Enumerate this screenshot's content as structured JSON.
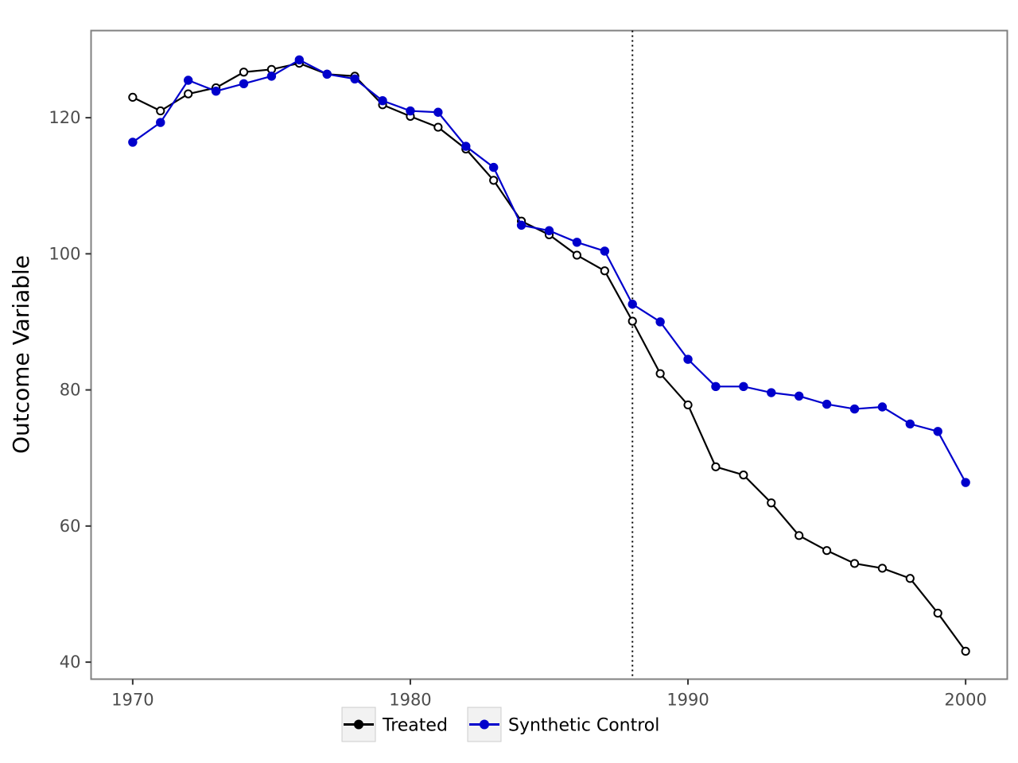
{
  "chart_data": {
    "type": "line",
    "title": "",
    "xlabel": "",
    "ylabel": "Outcome Variable",
    "xlim": [
      1968.5,
      2001.5
    ],
    "ylim": [
      37.5,
      132.8
    ],
    "x_ticks": [
      1970,
      1980,
      1990,
      2000
    ],
    "y_ticks": [
      40,
      60,
      80,
      100,
      120
    ],
    "grid": false,
    "legend_position": "bottom",
    "treatment_year": 1988,
    "x": [
      1970,
      1971,
      1972,
      1973,
      1974,
      1975,
      1976,
      1977,
      1978,
      1979,
      1980,
      1981,
      1982,
      1983,
      1984,
      1985,
      1986,
      1987,
      1988,
      1989,
      1990,
      1991,
      1992,
      1993,
      1994,
      1995,
      1996,
      1997,
      1998,
      1999,
      2000
    ],
    "series": [
      {
        "name": "Treated",
        "color": "#000000",
        "marker": "hollow-circle",
        "values": [
          123.0,
          121.0,
          123.5,
          124.4,
          126.7,
          127.1,
          128.0,
          126.4,
          126.1,
          121.9,
          120.2,
          118.6,
          115.4,
          110.8,
          104.8,
          102.8,
          99.8,
          97.5,
          90.1,
          82.4,
          77.8,
          68.7,
          67.5,
          63.4,
          58.6,
          56.4,
          54.5,
          53.8,
          52.3,
          47.2,
          41.6
        ]
      },
      {
        "name": "Synthetic Control",
        "color": "#0000cc",
        "marker": "filled-circle",
        "values": [
          116.4,
          119.3,
          125.5,
          123.9,
          125.0,
          126.1,
          128.5,
          126.4,
          125.7,
          122.5,
          121.0,
          120.8,
          115.8,
          112.7,
          104.2,
          103.4,
          101.7,
          100.4,
          92.6,
          90.0,
          84.5,
          80.5,
          80.5,
          79.6,
          79.1,
          77.9,
          77.2,
          77.5,
          75.0,
          73.9,
          66.4
        ]
      }
    ]
  }
}
